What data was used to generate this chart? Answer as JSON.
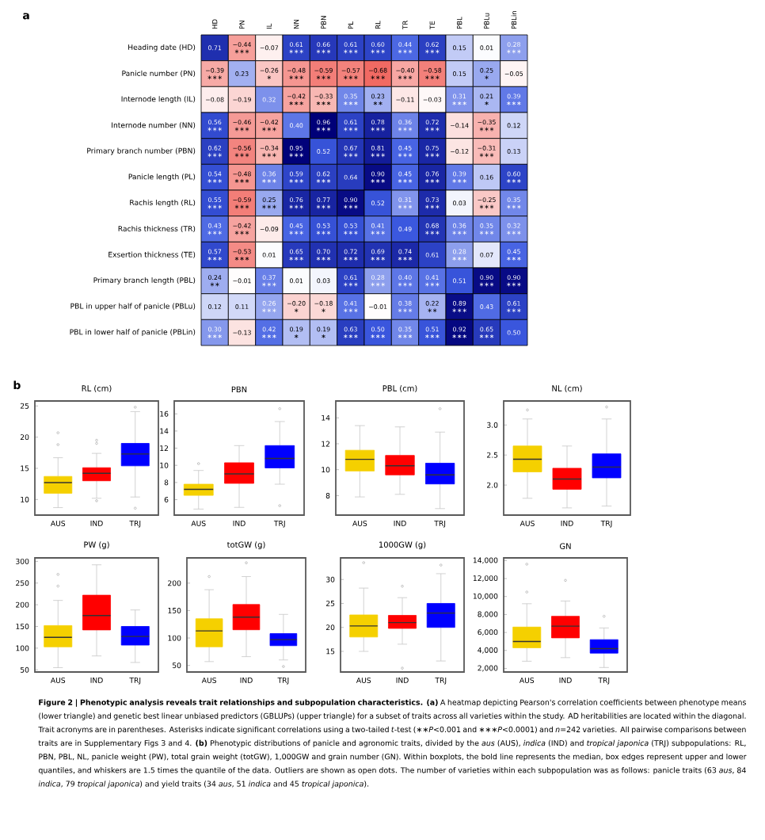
{
  "chart_data": [
    {
      "type": "heatmap",
      "categories": [
        "HD",
        "PN",
        "IL",
        "NN",
        "PBN",
        "PL",
        "RL",
        "TR",
        "TE",
        "PBL",
        "PBLu",
        "PBLin"
      ],
      "y_categories": [
        "Heading date (HD)",
        "Panicle number (PN)",
        "Internode length (IL)",
        "Internode number (NN)",
        "Primary branch number (PBN)",
        "Panicle length (PL)",
        "Rachis length (RL)",
        "Rachis thickness (TR)",
        "Exsertion thickness (TE)",
        "Primary branch length (PBL)",
        "PBL in upper half of panicle (PBLu)",
        "PBL in lower half of panicle (PBLin)"
      ],
      "cells": [
        [
          0.71,
          -0.44,
          -0.07,
          0.61,
          0.66,
          0.61,
          0.6,
          0.44,
          0.62,
          0.15,
          0.01,
          0.28
        ],
        [
          -0.39,
          0.23,
          -0.26,
          -0.48,
          -0.59,
          -0.57,
          -0.68,
          -0.4,
          -0.58,
          0.15,
          0.25,
          -0.05
        ],
        [
          -0.08,
          -0.19,
          0.32,
          -0.42,
          -0.33,
          0.35,
          0.23,
          -0.11,
          -0.03,
          0.31,
          0.21,
          0.39
        ],
        [
          0.56,
          -0.46,
          -0.42,
          0.4,
          0.96,
          0.61,
          0.78,
          0.36,
          0.72,
          -0.14,
          -0.35,
          0.12
        ],
        [
          0.62,
          -0.56,
          -0.34,
          0.95,
          0.52,
          0.67,
          0.81,
          0.45,
          0.75,
          -0.12,
          -0.31,
          0.13
        ],
        [
          0.54,
          -0.48,
          0.36,
          0.59,
          0.62,
          0.64,
          0.9,
          0.45,
          0.76,
          0.39,
          0.16,
          0.6
        ],
        [
          0.55,
          -0.59,
          0.25,
          0.76,
          0.77,
          0.9,
          0.52,
          0.31,
          0.73,
          0.03,
          -0.25,
          0.35
        ],
        [
          0.43,
          -0.42,
          -0.09,
          0.45,
          0.53,
          0.53,
          0.41,
          0.49,
          0.68,
          0.36,
          0.35,
          0.32
        ],
        [
          0.57,
          -0.53,
          0.01,
          0.65,
          0.7,
          0.72,
          0.69,
          0.74,
          0.61,
          0.28,
          0.07,
          0.45
        ],
        [
          0.24,
          -0.01,
          0.37,
          0.01,
          0.03,
          0.61,
          0.28,
          0.4,
          0.41,
          0.51,
          0.9,
          0.9
        ],
        [
          0.12,
          0.11,
          0.26,
          -0.2,
          -0.18,
          0.41,
          -0.01,
          0.38,
          0.22,
          0.89,
          0.43,
          0.61
        ],
        [
          0.3,
          -0.13,
          0.42,
          0.19,
          0.19,
          0.63,
          0.5,
          0.35,
          0.51,
          0.92,
          0.65,
          0.5
        ]
      ],
      "cell_labels": [
        [
          "0.71",
          "−0.44 ∗∗∗",
          "−0.07",
          "0.61 ∗∗∗",
          "0.66 ∗∗∗",
          "0.61 ∗∗∗",
          "0.60 ∗∗∗",
          "0.44 ∗∗∗",
          "0.62 ∗∗∗",
          "0.15",
          "0.01",
          "0.28 ∗∗∗"
        ],
        [
          "−0.39 ∗∗∗",
          "0.23",
          "−0.26 ∗",
          "−0.48 ∗∗∗",
          "−0.59 ∗∗∗",
          "−0.57 ∗∗∗",
          "−0.68 ∗∗∗",
          "−0.40 ∗∗∗",
          "−0.58 ∗∗∗",
          "0.15",
          "0.25 ∗",
          "−0.05"
        ],
        [
          "−0.08",
          "−0.19",
          "0.32",
          "−0.42 ∗∗∗",
          "−0.33 ∗∗∗",
          "0.35 ∗∗∗",
          "0.23 ∗∗",
          "−0.11",
          "−0.03",
          "0.31 ∗∗∗",
          "0.21 ∗",
          "0.39 ∗∗∗"
        ],
        [
          "0.56 ∗∗∗",
          "−0.46 ∗∗∗",
          "−0.42 ∗∗∗",
          "0.40",
          "0.96 ∗∗∗",
          "0.61 ∗∗∗",
          "0.78 ∗∗∗",
          "0.36 ∗∗∗",
          "0.72 ∗∗∗",
          "−0.14",
          "−0.35 ∗∗∗",
          "0.12"
        ],
        [
          "0.62 ∗∗∗",
          "−0.56 ∗∗∗",
          "−0.34 ∗∗∗",
          "0.95 ∗∗∗",
          "0.52",
          "0.67 ∗∗∗",
          "0.81 ∗∗∗",
          "0.45 ∗∗∗",
          "0.75 ∗∗∗",
          "−0.12",
          "−0.31 ∗∗∗",
          "0.13"
        ],
        [
          "0.54 ∗∗∗",
          "−0.48 ∗∗∗",
          "0.36 ∗∗∗",
          "0.59 ∗∗∗",
          "0.62 ∗∗∗",
          "0.64",
          "0.90 ∗∗∗",
          "0.45 ∗∗∗",
          "0.76 ∗∗∗",
          "0.39 ∗∗∗",
          "0.16",
          "0.60 ∗∗∗"
        ],
        [
          "0.55 ∗∗∗",
          "−0.59 ∗∗∗",
          "0.25 ∗∗∗",
          "0.76 ∗∗∗",
          "0.77 ∗∗∗",
          "0.90 ∗∗∗",
          "0.52",
          "0.31 ∗∗∗",
          "0.73 ∗∗∗",
          "0.03",
          "−0.25 ∗∗∗",
          "0.35 ∗∗∗"
        ],
        [
          "0.43 ∗∗∗",
          "−0.42 ∗∗∗",
          "−0.09",
          "0.45 ∗∗∗",
          "0.53 ∗∗∗",
          "0.53 ∗∗∗",
          "0.41 ∗∗∗",
          "0.49",
          "0.68 ∗∗∗",
          "0.36 ∗∗∗",
          "0.35 ∗∗∗",
          "0.32 ∗∗∗"
        ],
        [
          "0.57 ∗∗∗",
          "−0.53 ∗∗∗",
          "0.01",
          "0.65 ∗∗∗",
          "0.70 ∗∗∗",
          "0.72 ∗∗∗",
          "0.69 ∗∗∗",
          "0.74 ∗∗∗",
          "0.61",
          "0.28 ∗∗∗",
          "0.07",
          "0.45 ∗∗∗"
        ],
        [
          "0.24 ∗∗",
          "−0.01",
          "0.37 ∗∗∗",
          "0.01",
          "0.03",
          "0.61 ∗∗∗",
          "0.28 ∗∗∗",
          "0.40 ∗∗∗",
          "0.41 ∗∗∗",
          "0.51",
          "0.90 ∗∗∗",
          "0.90 ∗∗∗"
        ],
        [
          "0.12",
          "0.11",
          "0.26 ∗∗∗",
          "−0.20 ∗",
          "−0.18 ∗",
          "0.41 ∗∗∗",
          "−0.01",
          "0.38 ∗∗∗",
          "0.22 ∗∗",
          "0.89 ∗∗∗",
          "0.43",
          "0.61 ∗∗∗"
        ],
        [
          "0.30 ∗∗∗",
          "−0.13",
          "0.42 ∗∗∗",
          "0.19 ∗",
          "0.19 ∗",
          "0.63 ∗∗∗",
          "0.50 ∗∗∗",
          "0.35 ∗∗∗",
          "0.51 ∗∗∗",
          "0.92 ∗∗∗",
          "0.65 ∗∗∗",
          "0.50"
        ]
      ],
      "annotations": [
        "a"
      ]
    },
    {
      "type": "box",
      "title": "RL (cm)",
      "categories": [
        "AUS",
        "IND",
        "TRJ"
      ],
      "colors": [
        "#f5d000",
        "#ff0000",
        "#0000ff"
      ],
      "ylim": [
        7.5,
        25.8
      ],
      "yticks": [
        10,
        15,
        20,
        25
      ],
      "boxes": [
        {
          "low": 8.7,
          "q1": 11.0,
          "median": 12.7,
          "q3": 13.7,
          "high": 16.7,
          "outliers": [
            18.8,
            20.7
          ]
        },
        {
          "low": 10.2,
          "q1": 13.0,
          "median": 14.2,
          "q3": 15.1,
          "high": 17.4,
          "outliers": [
            19.0,
            19.5,
            9.8
          ]
        },
        {
          "low": 10.4,
          "q1": 15.4,
          "median": 17.3,
          "q3": 19.0,
          "high": 24.1,
          "outliers": [
            24.8,
            8.6
          ]
        }
      ],
      "annotations": [
        "b"
      ]
    },
    {
      "type": "box",
      "title": "PBN",
      "categories": [
        "AUS",
        "IND",
        "TRJ"
      ],
      "colors": [
        "#f5d000",
        "#ff0000",
        "#0000ff"
      ],
      "ylim": [
        4.2,
        17.5
      ],
      "yticks": [
        6,
        8,
        10,
        12,
        14,
        16
      ],
      "boxes": [
        {
          "low": 4.9,
          "q1": 6.5,
          "median": 7.2,
          "q3": 7.8,
          "high": 9.4,
          "outliers": [
            10.2
          ]
        },
        {
          "low": 5.1,
          "q1": 7.9,
          "median": 9.0,
          "q3": 10.3,
          "high": 12.3
        },
        {
          "low": 7.8,
          "q1": 9.7,
          "median": 10.8,
          "q3": 12.3,
          "high": 15.1,
          "outliers": [
            16.6,
            5.3
          ]
        }
      ]
    },
    {
      "type": "box",
      "title": "PBL (cm)",
      "categories": [
        "AUS",
        "IND",
        "TRJ"
      ],
      "colors": [
        "#f5d000",
        "#ff0000",
        "#0000ff"
      ],
      "ylim": [
        6.5,
        15.3
      ],
      "yticks": [
        8,
        10,
        12,
        14
      ],
      "boxes": [
        {
          "low": 7.9,
          "q1": 9.9,
          "median": 10.8,
          "q3": 11.5,
          "high": 13.4
        },
        {
          "low": 8.1,
          "q1": 9.6,
          "median": 10.3,
          "q3": 11.1,
          "high": 13.3
        },
        {
          "low": 7.0,
          "q1": 8.9,
          "median": 9.6,
          "q3": 10.5,
          "high": 12.9,
          "outliers": [
            14.7
          ]
        }
      ]
    },
    {
      "type": "box",
      "title": "NL (cm)",
      "categories": [
        "AUS",
        "IND",
        "TRJ"
      ],
      "colors": [
        "#f5d000",
        "#ff0000",
        "#0000ff"
      ],
      "ylim": [
        1.5,
        3.4
      ],
      "yticks": [
        {
          "value": 2,
          "label": "2.0"
        },
        2.5,
        {
          "value": 3,
          "label": "3.0"
        }
      ],
      "boxes": [
        {
          "low": 1.78,
          "q1": 2.22,
          "median": 2.43,
          "q3": 2.65,
          "high": 3.1,
          "outliers": [
            3.25
          ]
        },
        {
          "low": 1.62,
          "q1": 1.93,
          "median": 2.1,
          "q3": 2.28,
          "high": 2.65
        },
        {
          "low": 1.65,
          "q1": 2.12,
          "median": 2.3,
          "q3": 2.52,
          "high": 3.1,
          "outliers": [
            3.3
          ]
        }
      ]
    },
    {
      "type": "box",
      "title": "PW (g)",
      "categories": [
        "AUS",
        "IND",
        "TRJ"
      ],
      "colors": [
        "#f5d000",
        "#ff0000",
        "#0000ff"
      ],
      "ylim": [
        45,
        308
      ],
      "yticks": [
        50,
        100,
        150,
        200,
        250,
        300
      ],
      "boxes": [
        {
          "low": 55,
          "q1": 103,
          "median": 125,
          "q3": 152,
          "high": 210,
          "outliers": [
            243,
            270
          ]
        },
        {
          "low": 82,
          "q1": 142,
          "median": 175,
          "q3": 222,
          "high": 292
        },
        {
          "low": 67,
          "q1": 107,
          "median": 127,
          "q3": 150,
          "high": 188
        }
      ]
    },
    {
      "type": "box",
      "title": "totGW (g)",
      "categories": [
        "AUS",
        "IND",
        "TRJ"
      ],
      "colors": [
        "#f5d000",
        "#ff0000",
        "#0000ff"
      ],
      "ylim": [
        38,
        246
      ],
      "yticks": [
        50,
        100,
        150,
        200
      ],
      "boxes": [
        {
          "low": 57,
          "q1": 84,
          "median": 113,
          "q3": 135,
          "high": 188,
          "outliers": [
            212
          ]
        },
        {
          "low": 66,
          "q1": 115,
          "median": 138,
          "q3": 161,
          "high": 212,
          "outliers": [
            237
          ]
        },
        {
          "low": 60,
          "q1": 86,
          "median": 97,
          "q3": 108,
          "high": 143,
          "outliers": [
            48
          ]
        }
      ]
    },
    {
      "type": "box",
      "title": "1000GW (g)",
      "categories": [
        "AUS",
        "IND",
        "TRJ"
      ],
      "colors": [
        "#f5d000",
        "#ff0000",
        "#0000ff"
      ],
      "ylim": [
        10.7,
        34.5
      ],
      "yticks": [
        15,
        20,
        25,
        30
      ],
      "boxes": [
        {
          "low": 15,
          "q1": 18,
          "median": 20.3,
          "q3": 22.6,
          "high": 28.2,
          "outliers": [
            33.5
          ]
        },
        {
          "low": 16.5,
          "q1": 19.8,
          "median": 21,
          "q3": 22.5,
          "high": 26.2,
          "outliers": [
            28.6,
            11.5
          ]
        },
        {
          "low": 13,
          "q1": 20,
          "median": 23,
          "q3": 25,
          "high": 31.2,
          "outliers": [
            33
          ]
        }
      ]
    },
    {
      "type": "box",
      "title": "GN",
      "categories": [
        "AUS",
        "IND",
        "TRJ"
      ],
      "colors": [
        "#f5d000",
        "#ff0000",
        "#0000ff"
      ],
      "ylim": [
        1600,
        14300
      ],
      "yticks": [
        {
          "value": 2000,
          "label": "2,000"
        },
        {
          "value": 4000,
          "label": "4,000"
        },
        {
          "value": 6000,
          "label": "6,000"
        },
        {
          "value": 8000,
          "label": "8,000"
        },
        {
          "value": 10000,
          "label": "10,000"
        },
        {
          "value": 12000,
          "label": "12,000"
        },
        {
          "value": 14000,
          "label": "14,000"
        }
      ],
      "boxes": [
        {
          "low": 2800,
          "q1": 4300,
          "median": 5000,
          "q3": 6600,
          "high": 9200,
          "outliers": [
            10500,
            13600
          ]
        },
        {
          "low": 3200,
          "q1": 5400,
          "median": 6700,
          "q3": 7800,
          "high": 9500,
          "outliers": [
            11800
          ]
        },
        {
          "low": 2100,
          "q1": 3700,
          "median": 4200,
          "q3": 5200,
          "high": 6500,
          "outliers": [
            7800
          ]
        }
      ],
      "annotations": [
        "**Figure 2 | Phenotypic analysis reveals trait relationships and subpopulation characteristics. (a)** A heatmap depicting Pearson's correlation coefficients between phenotype means (lower triangle) and genetic best linear unbiased predictors (GBLUPs) (upper triangle) for a subset of traits across all varieties within the study. AD heritabilities are located within the diagonal. Trait acronyms are in parentheses. Asterisks indicate significant correlations using a two-tailed *t*-test (∗∗*P*<0.001 and ∗∗∗*P*<0.0001) and *n*=242 varieties. All pairwise comparisons between traits are in Supplementary Figs 3 and 4. **(b)** Phenotypic distributions of panicle and agronomic traits, divided by the *aus* (AUS), *indica* (IND) and *tropical japonica* (TRJ) subpopulations: RL, PBN, PBL, NL, panicle weight (PW), total grain weight (totGW), 1,000GW and grain number (GN). Within boxplots, the bold line represents the median, box edges represent upper and lower quantiles, and whiskers are 1.5 times the quantile of the data. Outliers are shown as open dots. The number of varieties within each subpopulation was as follows: panicle traits (63 *aus*, 84 *indica*, 79 *tropical japonica*) and yield traits (34 *aus*, 51 *indica* and 45 *tropical japonica*)."
      ]
    }
  ]
}
